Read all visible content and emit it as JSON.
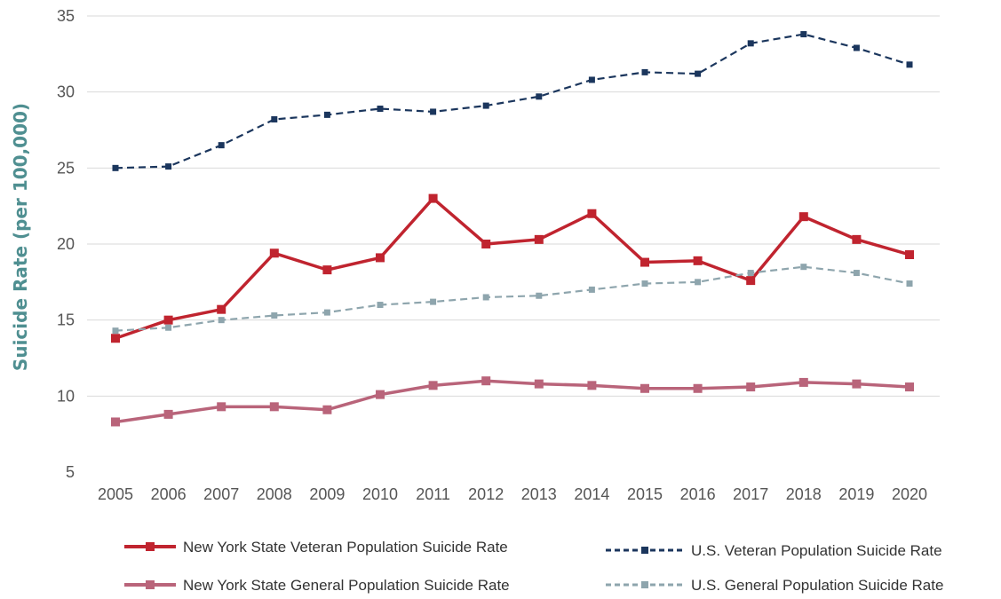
{
  "chart_data": {
    "type": "line",
    "ylabel": "Suicide Rate (per 100,000)",
    "xlabel": "",
    "ylim": [
      5,
      35
    ],
    "yticks": [
      5,
      10,
      15,
      20,
      25,
      30,
      35
    ],
    "grid": true,
    "legend_position": "bottom",
    "ylabel_color": "#4f8f91",
    "categories": [
      "2005",
      "2006",
      "2007",
      "2008",
      "2009",
      "2010",
      "2011",
      "2012",
      "2013",
      "2014",
      "2015",
      "2016",
      "2017",
      "2018",
      "2019",
      "2020"
    ],
    "series": [
      {
        "name": "U.S. Veteran Population Suicide Rate",
        "color": "#1b365d",
        "style": "dashed",
        "values": [
          25.0,
          25.1,
          26.5,
          28.2,
          28.5,
          28.9,
          28.7,
          29.1,
          29.7,
          30.8,
          31.3,
          31.2,
          33.2,
          33.8,
          32.9,
          31.8
        ]
      },
      {
        "name": "New York State Veteran Population Suicide Rate",
        "color": "#c0242f",
        "style": "solid",
        "values": [
          13.8,
          15.0,
          15.7,
          19.4,
          18.3,
          19.1,
          23.0,
          20.0,
          20.3,
          22.0,
          18.8,
          18.9,
          17.6,
          21.8,
          20.3,
          19.3
        ]
      },
      {
        "name": "U.S. General Population Suicide Rate",
        "color": "#8ea5ad",
        "style": "dashed",
        "values": [
          14.3,
          14.5,
          15.0,
          15.3,
          15.5,
          16.0,
          16.2,
          16.5,
          16.6,
          17.0,
          17.4,
          17.5,
          18.1,
          18.5,
          18.1,
          17.4
        ]
      },
      {
        "name": "New York State General Population Suicide Rate",
        "color": "#b9647a",
        "style": "solid",
        "values": [
          8.3,
          8.8,
          9.3,
          9.3,
          9.1,
          10.1,
          10.7,
          11.0,
          10.8,
          10.7,
          10.5,
          10.5,
          10.6,
          10.9,
          10.8,
          10.6
        ]
      }
    ],
    "legend": [
      {
        "series": 1
      },
      {
        "series": 0
      },
      {
        "series": 3
      },
      {
        "series": 2
      }
    ]
  }
}
